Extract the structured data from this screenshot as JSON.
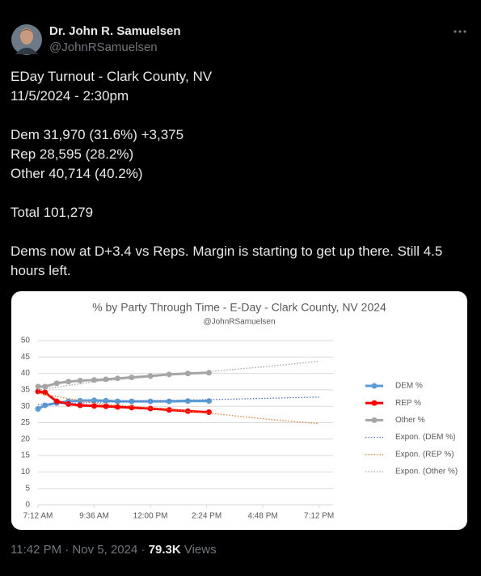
{
  "tweet": {
    "author_name": "Dr. John R. Samuelsen",
    "handle": "@JohnRSamuelsen",
    "paragraphs": [
      [
        "EDay Turnout - Clark County, NV",
        "11/5/2024 - 2:30pm"
      ],
      [
        "Dem 31,970 (31.6%) +3,375",
        "Rep 28,595 (28.2%)",
        "Other 40,714 (40.2%)"
      ],
      [
        "Total 101,279"
      ],
      [
        "Dems now at D+3.4 vs Reps. Margin is starting to get up there. Still 4.5 hours left."
      ]
    ],
    "timestamp": "11:42 PM · Nov 5, 2024 ·",
    "views_count": "79.3K",
    "views_label": "Views"
  },
  "chart_data": {
    "type": "line",
    "title": "% by Party Through Time - E-Day - Clark County, NV 2024",
    "subtitle": "@JohnRSamuelsen",
    "x": [
      7.2,
      7.5,
      8.0,
      8.5,
      9.0,
      9.6,
      10.1,
      10.6,
      11.2,
      12.0,
      12.8,
      13.6,
      14.5
    ],
    "xlim": [
      7.2,
      19.8
    ],
    "xticks": [
      {
        "value": 7.2,
        "label": "7:12 AM"
      },
      {
        "value": 9.6,
        "label": "9:36 AM"
      },
      {
        "value": 12.0,
        "label": "12:00 PM"
      },
      {
        "value": 14.4,
        "label": "2:24 PM"
      },
      {
        "value": 16.8,
        "label": "4:48 PM"
      },
      {
        "value": 19.2,
        "label": "7:12 PM"
      }
    ],
    "ylim": [
      0,
      50
    ],
    "yticks": [
      0,
      5,
      10,
      15,
      20,
      25,
      30,
      35,
      40,
      45,
      50
    ],
    "grid": true,
    "legend": "right",
    "series": [
      {
        "name": "DEM %",
        "color": "#5b9bd5",
        "line_style": "solid",
        "markers": true,
        "values": [
          29.2,
          30.3,
          31.0,
          31.5,
          31.7,
          31.8,
          31.7,
          31.5,
          31.5,
          31.5,
          31.5,
          31.6,
          31.6
        ]
      },
      {
        "name": "REP %",
        "color": "#ff0000",
        "line_style": "solid",
        "markers": true,
        "values": [
          34.5,
          34.2,
          31.5,
          30.7,
          30.3,
          30.1,
          30.0,
          29.8,
          29.6,
          29.3,
          28.9,
          28.5,
          28.2
        ]
      },
      {
        "name": "Other %",
        "color": "#a5a5a5",
        "line_style": "solid",
        "markers": true,
        "values": [
          36.0,
          36.0,
          37.0,
          37.5,
          37.8,
          38.0,
          38.2,
          38.5,
          38.8,
          39.2,
          39.7,
          40.0,
          40.2
        ]
      },
      {
        "name": "Expon. (DEM %)",
        "color": "#4472c4",
        "line_style": "dotted",
        "markers": false,
        "x": [
          7.2,
          9.6,
          12.0,
          14.4,
          16.8,
          19.2
        ],
        "values": [
          30.5,
          31.2,
          31.6,
          32.0,
          32.4,
          32.8
        ]
      },
      {
        "name": "Expon. (REP %)",
        "color": "#ed7d31",
        "line_style": "dotted",
        "markers": false,
        "x": [
          7.2,
          9.6,
          12.0,
          14.4,
          16.8,
          19.2
        ],
        "values": [
          34.0,
          31.0,
          29.5,
          28.0,
          26.2,
          24.7
        ]
      },
      {
        "name": "Expon. (Other %)",
        "color": "#a5a5a5",
        "line_style": "dotted",
        "markers": false,
        "x": [
          7.2,
          9.6,
          12.0,
          14.4,
          16.8,
          19.2
        ],
        "values": [
          35.0,
          37.5,
          39.0,
          40.5,
          42.0,
          43.7
        ]
      }
    ]
  }
}
